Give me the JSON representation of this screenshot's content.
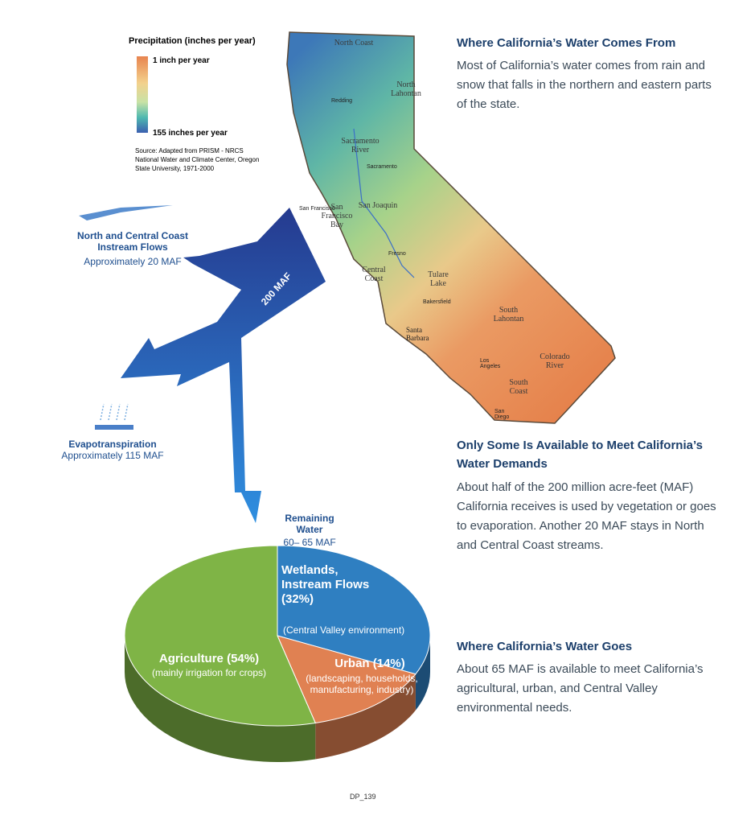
{
  "legend": {
    "title": "Precipitation (inches per year)",
    "min_label": "1 inch per year",
    "max_label": "155 inches per year",
    "source": "Source: Adapted from PRISM - NRCS National Water and Climate Center, Oregon State University, 1971-2000"
  },
  "map": {
    "regions": [
      "North Coast",
      "North Lahontan",
      "Sacramento River",
      "San Francisco Bay",
      "San Joaquin",
      "Central Coast",
      "Tulare Lake",
      "South Lahontan",
      "Colorado River",
      "South Coast"
    ],
    "cities": [
      "Redding",
      "Sacramento",
      "San Francisco",
      "Fresno",
      "Bakersfield",
      "Santa Barbara",
      "Los Angeles",
      "San Diego"
    ]
  },
  "flows": {
    "coast": {
      "name": "North and Central Coast Instream Flows",
      "amount": "Approximately 20 MAF"
    },
    "total": "200 MAF",
    "evapo": {
      "name": "Evapotranspiration",
      "amount": "Approximately 115 MAF"
    },
    "remaining": {
      "name": "Remaining Water",
      "amount": "60– 65 MAF"
    }
  },
  "sections": [
    {
      "heading": "Where California’s Water Comes From",
      "body": "Most of California’s water comes from rain and snow that falls in the northern and eastern parts of the state."
    },
    {
      "heading": "Only Some Is Available to Meet California’s Water Demands",
      "body": "About half of the 200 million acre-feet (MAF) California receives is used by vegetation or goes to evaporation. Another 20 MAF stays in North and Central Coast streams."
    },
    {
      "heading": "Where California’s Water Goes",
      "body": "About 65 MAF is available to meet California’s agricultural, urban, and Central Valley environmental needs."
    }
  ],
  "chart_data": {
    "type": "pie",
    "categories": [
      "Wetlands, Instream Flows (32%)",
      "Urban (14%)",
      "Agriculture (54%)"
    ],
    "values": [
      32,
      14,
      54
    ],
    "sublabels": [
      "(Central Valley environment)",
      "(landscaping, households, manufacturing, industry)",
      "(mainly irrigation for crops)"
    ],
    "colors": [
      "#2f7fc1",
      "#e08152",
      "#7fb446"
    ]
  },
  "footer": "DP_139"
}
